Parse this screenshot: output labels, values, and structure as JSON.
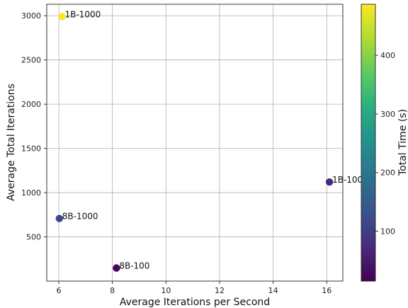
{
  "chart_data": {
    "type": "scatter",
    "xlabel": "Average Iterations per Second",
    "ylabel": "Average Total Iterations",
    "xlim": [
      5.55,
      16.6
    ],
    "ylim": [
      0,
      3130
    ],
    "xticks": [
      6,
      8,
      10,
      12,
      14,
      16
    ],
    "yticks": [
      500,
      1000,
      1500,
      2000,
      2500,
      3000
    ],
    "grid": true,
    "points": [
      {
        "label": "1B-1000",
        "x": 6.12,
        "y": 2990,
        "total_time": 485
      },
      {
        "label": "1B-100",
        "x": 16.1,
        "y": 1120,
        "total_time": 70
      },
      {
        "label": "8B-1000",
        "x": 6.02,
        "y": 708,
        "total_time": 115
      },
      {
        "label": "8B-100",
        "x": 8.15,
        "y": 148,
        "total_time": 22
      }
    ],
    "colorbar": {
      "label": "Total Time (s)",
      "range": [
        15,
        487
      ],
      "ticks": [
        100,
        200,
        300,
        400
      ],
      "colormap": "viridis"
    }
  }
}
